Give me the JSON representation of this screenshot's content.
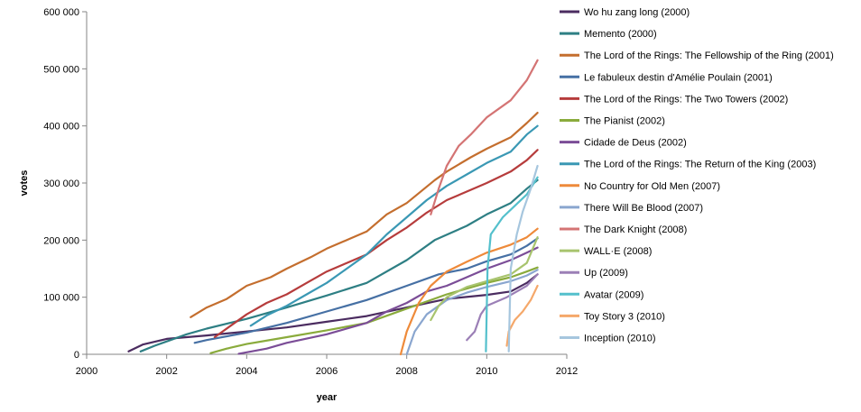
{
  "chart_data": {
    "type": "line",
    "xlabel": "year",
    "ylabel": "votes",
    "xlim": [
      2000,
      2012
    ],
    "ylim": [
      0,
      600000
    ],
    "x_ticks": [
      2000,
      2002,
      2004,
      2006,
      2008,
      2010,
      2012
    ],
    "x_tick_labels": [
      "2000",
      "2002",
      "2004",
      "2006",
      "2008",
      "2010",
      "2012"
    ],
    "y_ticks": [
      0,
      100000,
      200000,
      300000,
      400000,
      500000,
      600000
    ],
    "y_tick_labels": [
      "0",
      "100 000",
      "200 000",
      "300 000",
      "400 000",
      "500 000",
      "600 000"
    ],
    "grid": false,
    "legend_position": "right",
    "series": [
      {
        "name": "Wo hu zang long (2000)",
        "color": "#4b2c60",
        "points": [
          [
            2001.05,
            5000
          ],
          [
            2001.4,
            17000
          ],
          [
            2002,
            27000
          ],
          [
            2003,
            33000
          ],
          [
            2004,
            40000
          ],
          [
            2005,
            47000
          ],
          [
            2006,
            57000
          ],
          [
            2007,
            67000
          ],
          [
            2008,
            82000
          ],
          [
            2009,
            97000
          ],
          [
            2010,
            104000
          ],
          [
            2010.6,
            110000
          ],
          [
            2011,
            125000
          ],
          [
            2011.27,
            140000
          ]
        ]
      },
      {
        "name": "Memento (2000)",
        "color": "#2e7f84",
        "points": [
          [
            2001.35,
            5000
          ],
          [
            2001.7,
            15000
          ],
          [
            2002.5,
            35000
          ],
          [
            2003,
            45000
          ],
          [
            2004,
            62000
          ],
          [
            2005,
            82000
          ],
          [
            2006,
            103000
          ],
          [
            2007,
            125000
          ],
          [
            2008,
            165000
          ],
          [
            2008.7,
            200000
          ],
          [
            2009.5,
            225000
          ],
          [
            2010,
            245000
          ],
          [
            2010.6,
            265000
          ],
          [
            2011,
            290000
          ],
          [
            2011.27,
            305000
          ]
        ]
      },
      {
        "name": "The Lord of the Rings: The Fellowship of the Ring (2001)",
        "color": "#c46e2e",
        "points": [
          [
            2002.6,
            65000
          ],
          [
            2003,
            82000
          ],
          [
            2003.5,
            97000
          ],
          [
            2004,
            120000
          ],
          [
            2004.6,
            135000
          ],
          [
            2005,
            150000
          ],
          [
            2005.6,
            170000
          ],
          [
            2006,
            185000
          ],
          [
            2006.6,
            203000
          ],
          [
            2007,
            215000
          ],
          [
            2007.5,
            245000
          ],
          [
            2008,
            265000
          ],
          [
            2008.7,
            305000
          ],
          [
            2009,
            320000
          ],
          [
            2009.6,
            345000
          ],
          [
            2010,
            360000
          ],
          [
            2010.6,
            380000
          ],
          [
            2011,
            405000
          ],
          [
            2011.27,
            423000
          ]
        ]
      },
      {
        "name": "Le fabuleux destin d'Amélie Poulain (2001)",
        "color": "#4670a4",
        "points": [
          [
            2002.7,
            20000
          ],
          [
            2003,
            25000
          ],
          [
            2004,
            38000
          ],
          [
            2005,
            55000
          ],
          [
            2006,
            75000
          ],
          [
            2007,
            95000
          ],
          [
            2008,
            120000
          ],
          [
            2008.8,
            140000
          ],
          [
            2009.5,
            150000
          ],
          [
            2010,
            163000
          ],
          [
            2010.6,
            175000
          ],
          [
            2011,
            190000
          ],
          [
            2011.27,
            203000
          ]
        ]
      },
      {
        "name": "The Lord of the Rings: The Two Towers (2002)",
        "color": "#b63c3c",
        "points": [
          [
            2003.2,
            30000
          ],
          [
            2003.6,
            50000
          ],
          [
            2004,
            70000
          ],
          [
            2004.5,
            90000
          ],
          [
            2005,
            105000
          ],
          [
            2005.5,
            125000
          ],
          [
            2006,
            145000
          ],
          [
            2006.5,
            160000
          ],
          [
            2007,
            175000
          ],
          [
            2007.5,
            200000
          ],
          [
            2008,
            222000
          ],
          [
            2008.5,
            248000
          ],
          [
            2009,
            270000
          ],
          [
            2009.5,
            285000
          ],
          [
            2010,
            300000
          ],
          [
            2010.6,
            320000
          ],
          [
            2011,
            340000
          ],
          [
            2011.27,
            358000
          ]
        ]
      },
      {
        "name": "The Pianist (2002)",
        "color": "#8aab3c",
        "points": [
          [
            2003.1,
            2000
          ],
          [
            2003.5,
            10000
          ],
          [
            2004,
            18000
          ],
          [
            2005,
            30000
          ],
          [
            2006,
            42000
          ],
          [
            2007,
            55000
          ],
          [
            2008,
            80000
          ],
          [
            2009,
            105000
          ],
          [
            2010,
            125000
          ],
          [
            2010.6,
            135000
          ],
          [
            2011,
            145000
          ],
          [
            2011.27,
            152000
          ]
        ]
      },
      {
        "name": "Cidade de Deus (2002)",
        "color": "#7b4d97",
        "points": [
          [
            2003.8,
            1000
          ],
          [
            2004.5,
            10000
          ],
          [
            2005,
            20000
          ],
          [
            2006,
            35000
          ],
          [
            2007,
            55000
          ],
          [
            2007.5,
            75000
          ],
          [
            2008,
            90000
          ],
          [
            2008.5,
            110000
          ],
          [
            2009,
            120000
          ],
          [
            2009.5,
            135000
          ],
          [
            2010,
            150000
          ],
          [
            2010.6,
            165000
          ],
          [
            2011,
            178000
          ],
          [
            2011.27,
            187000
          ]
        ]
      },
      {
        "name": "The Lord of the Rings: The Return of the King (2003)",
        "color": "#3a98b4",
        "points": [
          [
            2004.1,
            50000
          ],
          [
            2004.5,
            68000
          ],
          [
            2005,
            85000
          ],
          [
            2005.5,
            105000
          ],
          [
            2006,
            125000
          ],
          [
            2006.5,
            150000
          ],
          [
            2007,
            175000
          ],
          [
            2007.5,
            210000
          ],
          [
            2008,
            240000
          ],
          [
            2008.5,
            270000
          ],
          [
            2009,
            295000
          ],
          [
            2009.5,
            315000
          ],
          [
            2010,
            335000
          ],
          [
            2010.6,
            355000
          ],
          [
            2011,
            385000
          ],
          [
            2011.27,
            400000
          ]
        ]
      },
      {
        "name": "No Country for Old Men (2007)",
        "color": "#ee8a3a",
        "points": [
          [
            2007.85,
            0
          ],
          [
            2008,
            40000
          ],
          [
            2008.3,
            90000
          ],
          [
            2008.6,
            120000
          ],
          [
            2009,
            145000
          ],
          [
            2009.5,
            162000
          ],
          [
            2010,
            178000
          ],
          [
            2010.6,
            192000
          ],
          [
            2011,
            205000
          ],
          [
            2011.27,
            220000
          ]
        ]
      },
      {
        "name": "There Will Be Blood (2007)",
        "color": "#8aa6cf",
        "points": [
          [
            2008,
            0
          ],
          [
            2008.2,
            40000
          ],
          [
            2008.5,
            70000
          ],
          [
            2009,
            95000
          ],
          [
            2009.5,
            108000
          ],
          [
            2010,
            118000
          ],
          [
            2010.6,
            128000
          ],
          [
            2011,
            138000
          ],
          [
            2011.27,
            148000
          ]
        ]
      },
      {
        "name": "The Dark Knight (2008)",
        "color": "#d47474",
        "points": [
          [
            2008.6,
            245000
          ],
          [
            2008.8,
            290000
          ],
          [
            2009,
            330000
          ],
          [
            2009.3,
            365000
          ],
          [
            2009.6,
            385000
          ],
          [
            2010,
            415000
          ],
          [
            2010.3,
            430000
          ],
          [
            2010.6,
            445000
          ],
          [
            2011,
            480000
          ],
          [
            2011.27,
            515000
          ]
        ]
      },
      {
        "name": "WALL·E (2008)",
        "color": "#a8c46e",
        "points": [
          [
            2008.6,
            60000
          ],
          [
            2008.8,
            85000
          ],
          [
            2009,
            100000
          ],
          [
            2009.5,
            118000
          ],
          [
            2010,
            128000
          ],
          [
            2010.6,
            140000
          ],
          [
            2011,
            160000
          ],
          [
            2011.27,
            205000
          ]
        ]
      },
      {
        "name": "Up (2009)",
        "color": "#9b7fb6",
        "points": [
          [
            2009.5,
            25000
          ],
          [
            2009.7,
            40000
          ],
          [
            2009.85,
            70000
          ],
          [
            2010,
            85000
          ],
          [
            2010.5,
            100000
          ],
          [
            2011,
            120000
          ],
          [
            2011.27,
            140000
          ]
        ]
      },
      {
        "name": "Avatar (2009)",
        "color": "#54c0cc",
        "points": [
          [
            2009.98,
            5000
          ],
          [
            2010.02,
            150000
          ],
          [
            2010.1,
            210000
          ],
          [
            2010.4,
            240000
          ],
          [
            2010.7,
            260000
          ],
          [
            2011,
            280000
          ],
          [
            2011.27,
            310000
          ]
        ]
      },
      {
        "name": "Toy Story 3 (2010)",
        "color": "#f5a86a",
        "points": [
          [
            2010.5,
            15000
          ],
          [
            2010.55,
            40000
          ],
          [
            2010.7,
            60000
          ],
          [
            2010.9,
            75000
          ],
          [
            2011.1,
            95000
          ],
          [
            2011.27,
            120000
          ]
        ]
      },
      {
        "name": "Inception (2010)",
        "color": "#a6c6de",
        "points": [
          [
            2010.55,
            5000
          ],
          [
            2010.6,
            150000
          ],
          [
            2010.75,
            210000
          ],
          [
            2010.9,
            250000
          ],
          [
            2011.1,
            290000
          ],
          [
            2011.27,
            330000
          ]
        ]
      }
    ]
  }
}
